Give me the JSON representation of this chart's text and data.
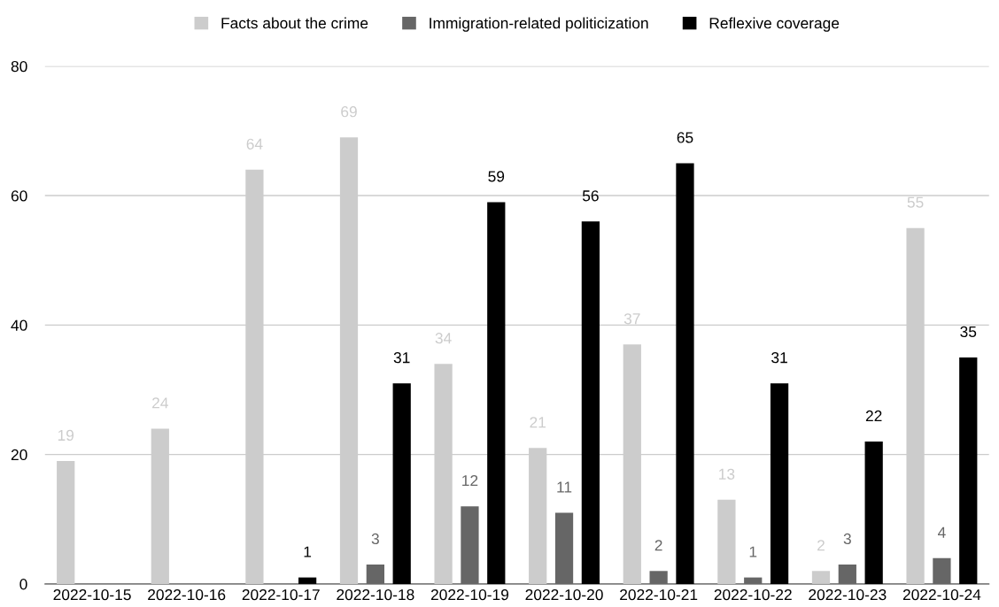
{
  "chart_data": {
    "type": "bar",
    "categories": [
      "2022-10-15",
      "2022-10-16",
      "2022-10-17",
      "2022-10-18",
      "2022-10-19",
      "2022-10-20",
      "2022-10-21",
      "2022-10-22",
      "2022-10-23",
      "2022-10-24"
    ],
    "series": [
      {
        "name": "Facts about the crime",
        "color": "#cccccc",
        "values": [
          19,
          24,
          64,
          69,
          34,
          21,
          37,
          13,
          2,
          55
        ]
      },
      {
        "name": "Immigration-related politicization",
        "color": "#666666",
        "values": [
          null,
          null,
          null,
          3,
          12,
          11,
          2,
          1,
          3,
          4
        ]
      },
      {
        "name": "Reflexive coverage",
        "color": "#000000",
        "values": [
          null,
          null,
          1,
          31,
          59,
          56,
          65,
          31,
          22,
          35
        ]
      }
    ],
    "ylim": [
      0,
      80
    ],
    "yticks": [
      0,
      20,
      40,
      60,
      80
    ],
    "grid": "y",
    "legend": "top",
    "data_labels": true
  }
}
